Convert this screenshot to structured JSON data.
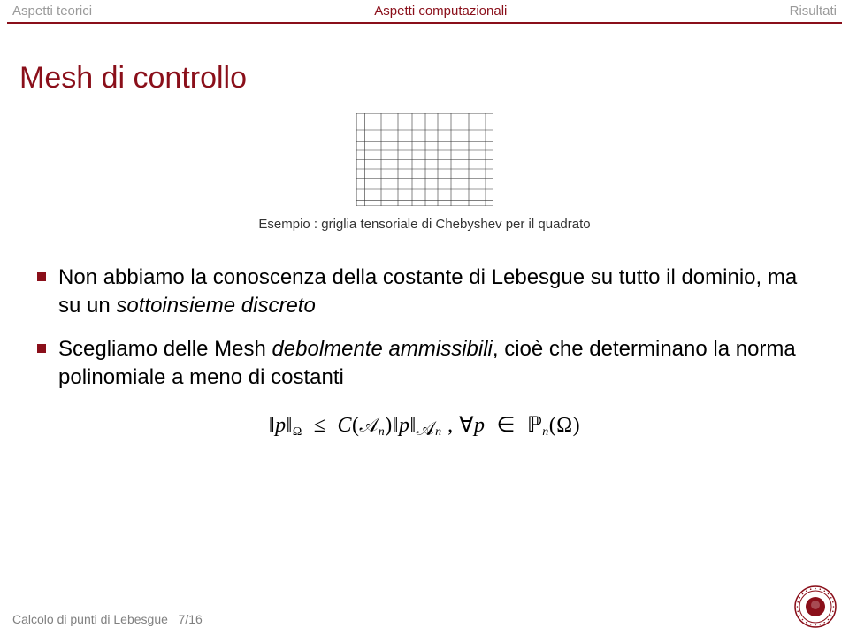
{
  "nav": {
    "left": "Aspetti teorici",
    "center": "Aspetti computazionali",
    "right": "Risultati",
    "link_color_active": "#8a0f1a",
    "link_color_inactive": "#9a9a9a"
  },
  "title": "Mesh di controllo",
  "title_color": "#8a0f1a",
  "title_fontsize": 34,
  "grid": {
    "width": 155,
    "height": 105,
    "line_color": "#333333",
    "line_width": 0.6,
    "bg": "#ffffff",
    "x_ticks": [
      0,
      9.3,
      28,
      47,
      63,
      78,
      92,
      107,
      127,
      146,
      155
    ],
    "y_ticks": [
      0,
      6.3,
      19,
      31.5,
      42,
      52.5,
      63,
      73.5,
      86,
      98.7,
      105
    ]
  },
  "caption": "Esempio : griglia tensoriale di Chebyshev per il quadrato",
  "caption_fontsize": 15,
  "bullets": [
    {
      "html": "Non abbiamo la conoscenza della costante di Lebesgue su tutto il dominio, ma su un <em>sottoinsieme discreto</em>",
      "dot_color": "#8a0f1a"
    },
    {
      "html": "Scegliamo delle Mesh <em>debolmente ammissibili</em>, cioè che determinano la norma polinomiale a meno di costanti",
      "dot_color": "#8a0f1a"
    }
  ],
  "formula": {
    "p": "p",
    "Omega": "Ω",
    "C": "C",
    "A": "𝒜",
    "n": "n",
    "le": "≤",
    "forall": "∀",
    "in": "∈",
    "P": "ℙ",
    "open": "(",
    "close": ")",
    "comma": ", "
  },
  "footer": {
    "label": "Calcolo di punti di Lebesgue",
    "page": "7/16",
    "color": "#808080",
    "fontsize": 14
  },
  "logo": {
    "ring_color": "#8a0f1a",
    "fill_color": "#ffffff",
    "size": 48
  }
}
